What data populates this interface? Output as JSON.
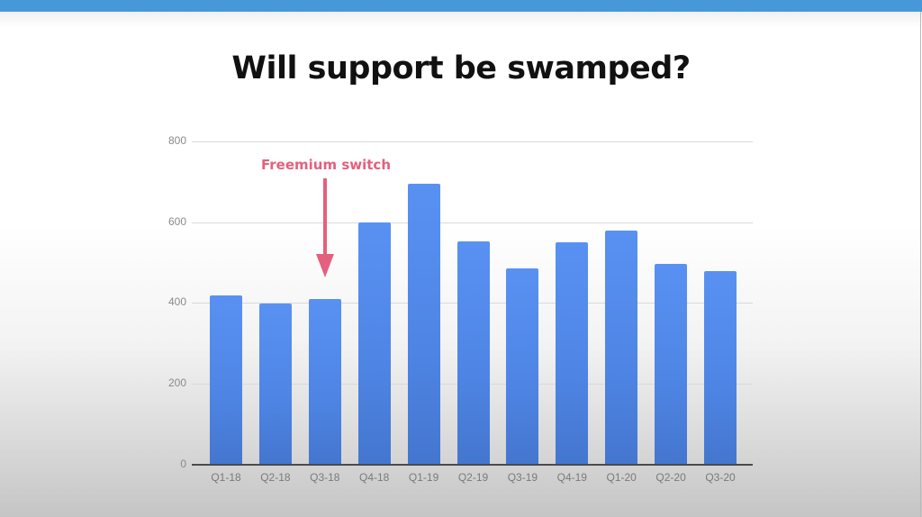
{
  "slide": {
    "title": "Will support be swamped?",
    "accent_color": "#4798d8",
    "bar_color": "#5189ec",
    "annotation_color": "#e3607e"
  },
  "chart_data": {
    "type": "bar",
    "title": "Will support be swamped?",
    "xlabel": "",
    "ylabel": "",
    "categories": [
      "Q1-18",
      "Q2-18",
      "Q3-18",
      "Q4-18",
      "Q1-19",
      "Q2-19",
      "Q3-19",
      "Q4-19",
      "Q1-20",
      "Q2-20",
      "Q3-20"
    ],
    "values": [
      420,
      400,
      410,
      600,
      695,
      553,
      486,
      551,
      580,
      497,
      479
    ],
    "ylim": [
      0,
      800
    ],
    "yticks": [
      "0",
      "200",
      "400",
      "600",
      "800"
    ],
    "grid": true,
    "legend": "none",
    "annotations": [
      {
        "text": "Freemium switch",
        "points_to": "Q3-18",
        "type": "arrow-down"
      }
    ]
  }
}
